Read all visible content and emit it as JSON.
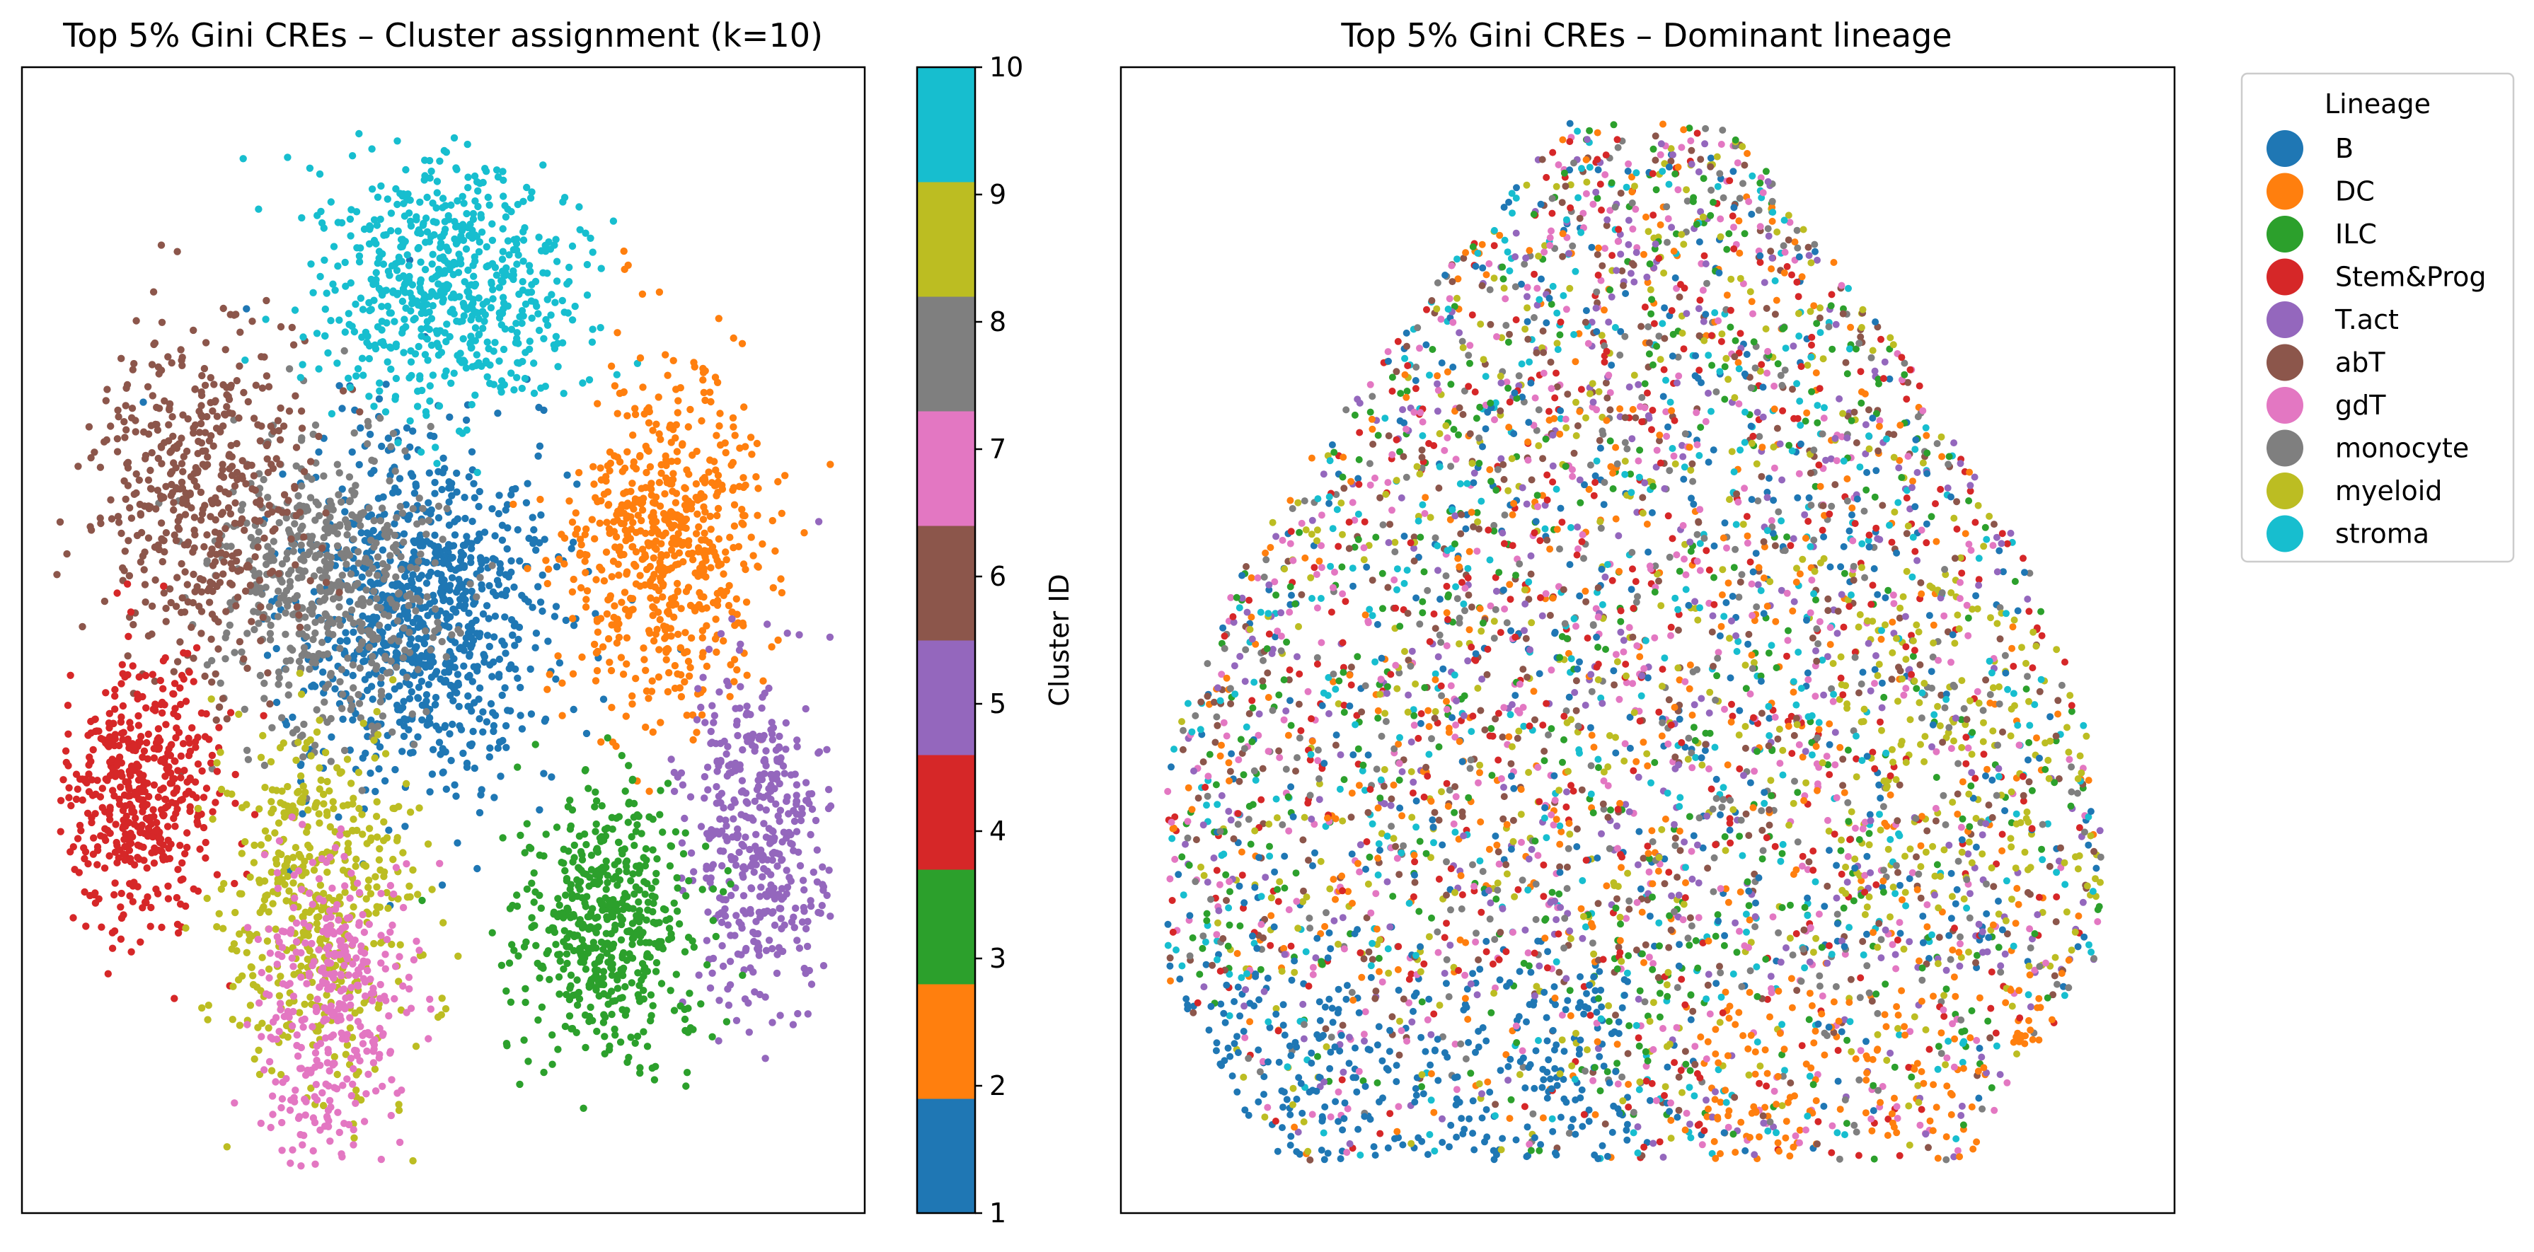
{
  "chart_data": [
    {
      "type": "scatter",
      "title": "Top 5% Gini CREs – Cluster assignment (k=10)",
      "xlabel": "",
      "ylabel": "",
      "colorbar": {
        "label": "Cluster ID",
        "ticks": [
          "1",
          "2",
          "3",
          "4",
          "5",
          "6",
          "7",
          "8",
          "9",
          "10"
        ],
        "range": [
          1,
          10
        ],
        "colors": [
          "#1f77b4",
          "#ff7f0e",
          "#2ca02c",
          "#d62728",
          "#9467bd",
          "#8c564b",
          "#e377c2",
          "#7f7f7f",
          "#bcbd22",
          "#17becf"
        ]
      },
      "clusters": [
        {
          "id": 1,
          "color": "#1f77b4",
          "region": "center"
        },
        {
          "id": 2,
          "color": "#ff7f0e",
          "region": "right-upper"
        },
        {
          "id": 3,
          "color": "#2ca02c",
          "region": "bottom-center-right"
        },
        {
          "id": 4,
          "color": "#d62728",
          "region": "left"
        },
        {
          "id": 5,
          "color": "#9467bd",
          "region": "right"
        },
        {
          "id": 6,
          "color": "#8c564b",
          "region": "upper-left"
        },
        {
          "id": 7,
          "color": "#e377c2",
          "region": "bottom-left"
        },
        {
          "id": 8,
          "color": "#7f7f7f",
          "region": "center-left"
        },
        {
          "id": 9,
          "color": "#bcbd22",
          "region": "lower-left-center"
        },
        {
          "id": 10,
          "color": "#17becf",
          "region": "top"
        }
      ],
      "grid": false
    },
    {
      "type": "scatter",
      "title": "Top 5% Gini CREs – Dominant lineage",
      "xlabel": "",
      "ylabel": "",
      "legend": {
        "title": "Lineage",
        "placement": "outside-right",
        "entries": [
          {
            "name": "B",
            "color": "#1f77b4"
          },
          {
            "name": "DC",
            "color": "#ff7f0e"
          },
          {
            "name": "ILC",
            "color": "#2ca02c"
          },
          {
            "name": "Stem&Prog",
            "color": "#d62728"
          },
          {
            "name": "T.act",
            "color": "#9467bd"
          },
          {
            "name": "abT",
            "color": "#8c564b"
          },
          {
            "name": "gdT",
            "color": "#e377c2"
          },
          {
            "name": "monocyte",
            "color": "#7f7f7f"
          },
          {
            "name": "myeloid",
            "color": "#bcbd22"
          },
          {
            "name": "stroma",
            "color": "#17becf"
          }
        ]
      },
      "grid": false
    }
  ]
}
